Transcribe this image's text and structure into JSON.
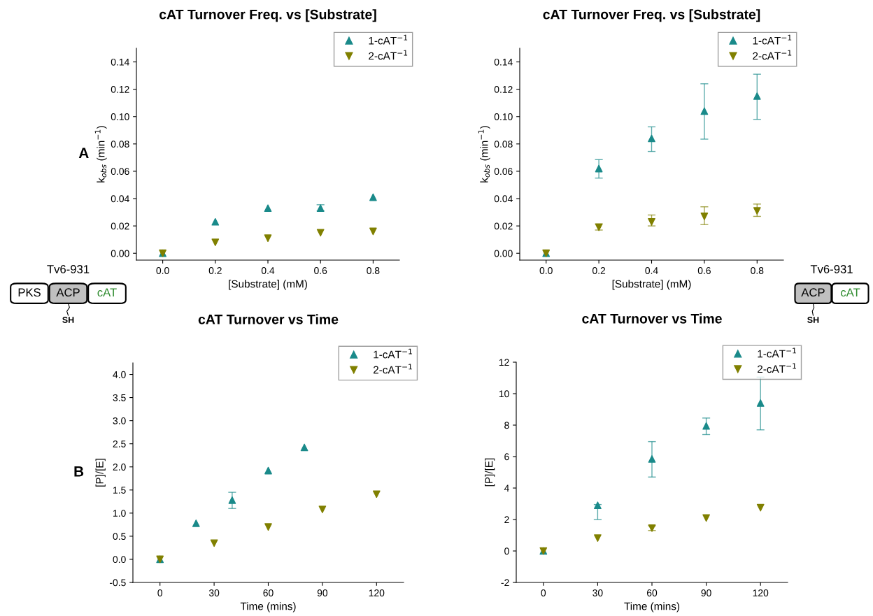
{
  "chart_data": [
    {
      "type": "scatter",
      "title": "cAT Turnover Freq. vs [Substrate]",
      "xlabel": "[Substrate] (mM)",
      "ylabel": "k$_{obs}$ (min$^{−1}$)",
      "annotations": [
        "A"
      ],
      "xlim": [
        -0.1,
        0.9
      ],
      "xticks": [
        {
          "value": 0,
          "label": "0.0"
        },
        0.2,
        0.4,
        0.6,
        0.8
      ],
      "ylim": [
        -0.005,
        0.15
      ],
      "yticks": [
        {
          "value": 0,
          "label": "0.00"
        },
        {
          "value": 0.02,
          "label": "0.02"
        },
        {
          "value": 0.04,
          "label": "0.04"
        },
        {
          "value": 0.06,
          "label": "0.06"
        },
        {
          "value": 0.08,
          "label": "0.08"
        },
        {
          "value": 0.1,
          "label": "0.10"
        },
        {
          "value": 0.12,
          "label": "0.12"
        },
        {
          "value": 0.14,
          "label": "0.14"
        }
      ],
      "legend": "top right",
      "grid": false,
      "series": [
        {
          "name": "1-cAT$^{−1}$",
          "color": "#1a8a8a",
          "marker": "triangle",
          "x": [
            0,
            0.2,
            0.4,
            0.6,
            0.8
          ],
          "values": [
            0,
            0.023,
            0.033,
            0.033,
            0.041
          ],
          "errors": [
            null,
            null,
            null,
            [
              0.031,
              0.0355
            ],
            null
          ]
        },
        {
          "name": "2-cAT$^{−1}$",
          "color": "#808000",
          "marker": "triangle-down",
          "x": [
            0,
            0.2,
            0.4,
            0.6,
            0.8
          ],
          "values": [
            0,
            0.008,
            0.011,
            0.015,
            0.016
          ]
        }
      ]
    },
    {
      "type": "scatter",
      "title": "cAT Turnover Freq. vs [Substrate]",
      "xlabel": "[Substrate] (mM)",
      "ylabel": "k$_{obs}$ (min$^{−1}$)",
      "xlim": [
        -0.1,
        0.9
      ],
      "xticks": [
        {
          "value": 0,
          "label": "0.0"
        },
        0.2,
        0.4,
        0.6,
        0.8
      ],
      "ylim": [
        -0.005,
        0.15
      ],
      "yticks": [
        {
          "value": 0,
          "label": "0.00"
        },
        {
          "value": 0.02,
          "label": "0.02"
        },
        {
          "value": 0.04,
          "label": "0.04"
        },
        {
          "value": 0.06,
          "label": "0.06"
        },
        {
          "value": 0.08,
          "label": "0.08"
        },
        {
          "value": 0.1,
          "label": "0.10"
        },
        {
          "value": 0.12,
          "label": "0.12"
        },
        {
          "value": 0.14,
          "label": "0.14"
        }
      ],
      "legend": "top right",
      "grid": false,
      "series": [
        {
          "name": "1-cAT$^{−1}$",
          "color": "#1a8a8a",
          "marker": "triangle",
          "x": [
            0,
            0.2,
            0.4,
            0.6,
            0.8
          ],
          "values": [
            0,
            0.062,
            0.084,
            0.104,
            0.115
          ],
          "errors": [
            null,
            [
              0.055,
              0.0685
            ],
            [
              0.0745,
              0.0925
            ],
            [
              0.0835,
              0.124
            ],
            [
              0.098,
              0.131
            ]
          ]
        },
        {
          "name": "2-cAT$^{−1}$",
          "color": "#808000",
          "marker": "triangle-down",
          "x": [
            0,
            0.2,
            0.4,
            0.6,
            0.8
          ],
          "values": [
            0,
            0.019,
            0.023,
            0.027,
            0.031
          ],
          "errors": [
            null,
            [
              0.017,
              0.0215
            ],
            [
              0.02,
              0.028
            ],
            [
              0.021,
              0.034
            ],
            [
              0.027,
              0.036
            ]
          ]
        }
      ]
    },
    {
      "type": "scatter",
      "title": "cAT Turnover vs Time",
      "xlabel": "Time (mins)",
      "ylabel": "[P]/[E]",
      "annotations": [
        "B"
      ],
      "xlim": [
        -15,
        135
      ],
      "xticks": [
        0,
        30,
        60,
        90,
        120
      ],
      "ylim": [
        -0.5,
        4.25
      ],
      "yticks": [
        {
          "value": -0.5,
          "label": "-0.5"
        },
        {
          "value": 0,
          "label": "0.0"
        },
        0.5,
        {
          "value": 1,
          "label": "1.0"
        },
        1.5,
        {
          "value": 2,
          "label": "2.0"
        },
        2.5,
        {
          "value": 3,
          "label": "3.0"
        },
        3.5,
        {
          "value": 4,
          "label": "4.0"
        }
      ],
      "legend": "top right",
      "grid": false,
      "series": [
        {
          "name": "1-cAT$^{−1}$",
          "color": "#1a8a8a",
          "marker": "triangle",
          "x": [
            0,
            20,
            40,
            60,
            80
          ],
          "values": [
            0,
            0.78,
            1.28,
            1.92,
            2.42
          ],
          "errors": [
            null,
            null,
            [
              1.1,
              1.45
            ],
            null,
            null
          ]
        },
        {
          "name": "2-cAT$^{−1}$",
          "color": "#808000",
          "marker": "triangle-down",
          "x": [
            0,
            30,
            60,
            90,
            120
          ],
          "values": [
            0,
            0.35,
            0.7,
            1.08,
            1.41
          ]
        }
      ]
    },
    {
      "type": "scatter",
      "title": "cAT Turnover vs Time",
      "xlabel": "Time (mins)",
      "ylabel": "[P]/[E]",
      "xlim": [
        -15,
        135
      ],
      "xticks": [
        0,
        30,
        60,
        90,
        120
      ],
      "ylim": [
        -2,
        12
      ],
      "yticks": [
        {
          "value": -2,
          "label": "-2"
        },
        0,
        2,
        4,
        6,
        8,
        10,
        12
      ],
      "legend": "top right",
      "grid": false,
      "series": [
        {
          "name": "1-cAT$^{−1}$",
          "color": "#1a8a8a",
          "marker": "triangle",
          "x": [
            0,
            30,
            60,
            90,
            120
          ],
          "values": [
            0,
            2.9,
            5.85,
            7.95,
            9.4
          ],
          "errors": [
            null,
            [
              2.0,
              2.95
            ],
            [
              4.7,
              6.95
            ],
            [
              7.4,
              8.45
            ],
            [
              7.7,
              11.05
            ]
          ]
        },
        {
          "name": "2-cAT$^{−1}$",
          "color": "#808000",
          "marker": "triangle-down",
          "x": [
            0,
            30,
            60,
            90,
            120
          ],
          "values": [
            0,
            0.82,
            1.45,
            2.1,
            2.75
          ],
          "errors": [
            null,
            null,
            [
              1.3,
              1.6
            ],
            null,
            null
          ]
        }
      ]
    },
    {
      "type": "other",
      "annotations": [
        "Tv6-931",
        "PKS",
        "ACP",
        "cAT",
        "SH"
      ]
    },
    {
      "type": "other",
      "annotations": [
        "Tv6-931",
        "ACP",
        "cAT",
        "SH"
      ]
    }
  ]
}
